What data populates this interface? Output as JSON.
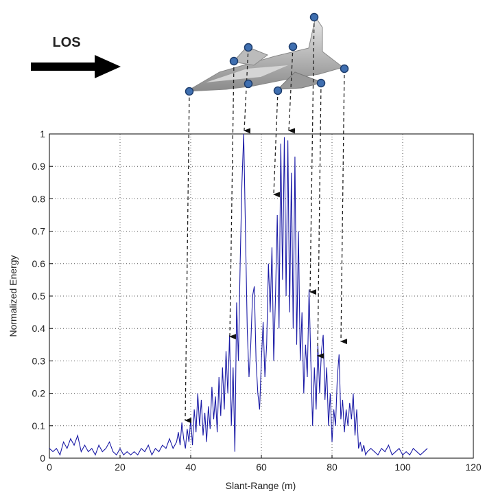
{
  "chart_data": {
    "type": "line",
    "annotation": "LOS",
    "xlabel": "Slant-Range (m)",
    "ylabel": "Normalized Energy",
    "x": [
      0,
      1,
      2,
      3,
      4,
      5,
      6,
      7,
      8,
      9,
      10,
      11,
      12,
      13,
      14,
      15,
      16,
      17,
      18,
      19,
      20,
      21,
      22,
      23,
      24,
      25,
      26,
      27,
      28,
      29,
      30,
      31,
      32,
      33,
      34,
      35,
      36,
      36.5,
      37,
      37.5,
      38,
      38.5,
      39,
      39.5,
      40,
      40.5,
      41,
      41.5,
      42,
      42.5,
      43,
      43.5,
      44,
      44.5,
      45,
      45.5,
      46,
      46.5,
      47,
      47.5,
      48,
      48.5,
      49,
      49.5,
      50,
      50.5,
      51,
      51.5,
      52,
      52.5,
      53,
      53.5,
      54,
      54.5,
      55,
      55.5,
      56,
      56.5,
      57,
      57.5,
      58,
      58.5,
      59,
      59.5,
      60,
      60.5,
      61,
      61.5,
      62,
      62.5,
      63,
      63.5,
      64,
      64.5,
      65,
      65.5,
      66,
      66.5,
      67,
      67.5,
      68,
      68.5,
      69,
      69.5,
      70,
      70.5,
      71,
      71.5,
      72,
      72.5,
      73,
      73.5,
      74,
      74.5,
      75,
      75.5,
      76,
      76.5,
      77,
      77.5,
      78,
      78.5,
      79,
      79.5,
      80,
      80.5,
      81,
      81.5,
      82,
      82.5,
      83,
      83.5,
      84,
      84.5,
      85,
      85.5,
      86,
      86.5,
      87,
      87.5,
      88,
      88.5,
      89,
      89.5,
      90,
      91,
      92,
      93,
      94,
      95,
      96,
      97,
      98,
      99,
      100,
      101,
      102,
      103,
      104,
      105,
      106,
      107
    ],
    "series": [
      {
        "name": "Normalized Energy",
        "color": "#1a1aa6",
        "values": [
          0.03,
          0.02,
          0.03,
          0.01,
          0.05,
          0.03,
          0.06,
          0.04,
          0.07,
          0.02,
          0.04,
          0.02,
          0.03,
          0.01,
          0.04,
          0.02,
          0.03,
          0.05,
          0.02,
          0.01,
          0.03,
          0.01,
          0.02,
          0.01,
          0.02,
          0.01,
          0.03,
          0.02,
          0.04,
          0.01,
          0.03,
          0.02,
          0.04,
          0.03,
          0.06,
          0.03,
          0.05,
          0.08,
          0.04,
          0.11,
          0.06,
          0.03,
          0.09,
          0.05,
          0.12,
          0.04,
          0.15,
          0.08,
          0.2,
          0.1,
          0.18,
          0.07,
          0.14,
          0.05,
          0.16,
          0.09,
          0.22,
          0.12,
          0.19,
          0.08,
          0.25,
          0.13,
          0.28,
          0.15,
          0.33,
          0.2,
          0.38,
          0.1,
          0.28,
          0.02,
          0.48,
          0.3,
          0.6,
          0.85,
          1.0,
          0.7,
          0.4,
          0.25,
          0.35,
          0.5,
          0.53,
          0.3,
          0.2,
          0.15,
          0.3,
          0.42,
          0.25,
          0.35,
          0.6,
          0.45,
          0.65,
          0.3,
          0.5,
          0.75,
          0.4,
          0.97,
          0.55,
          0.99,
          0.5,
          0.98,
          0.45,
          0.88,
          0.4,
          0.93,
          0.35,
          0.7,
          0.3,
          0.45,
          0.2,
          0.35,
          0.25,
          0.52,
          0.3,
          0.1,
          0.28,
          0.15,
          0.35,
          0.2,
          0.33,
          0.38,
          0.18,
          0.28,
          0.1,
          0.2,
          0.05,
          0.15,
          0.1,
          0.25,
          0.32,
          0.12,
          0.18,
          0.08,
          0.15,
          0.1,
          0.17,
          0.12,
          0.2,
          0.07,
          0.15,
          0.03,
          0.05,
          0.02,
          0.04,
          0.01,
          0.02,
          0.03,
          0.02,
          0.01,
          0.03,
          0.02,
          0.04,
          0.01,
          0.02,
          0.03,
          0.01,
          0.02,
          0.01,
          0.03,
          0.02,
          0.01,
          0.02,
          0.03
        ]
      }
    ],
    "xlim": [
      0,
      120
    ],
    "ylim": [
      0,
      1
    ],
    "xticks": [
      0,
      20,
      40,
      60,
      80,
      100,
      120
    ],
    "yticks": [
      0,
      0.1,
      0.2,
      0.3,
      0.4,
      0.5,
      0.6,
      0.7,
      0.8,
      0.9,
      1
    ],
    "grid": true
  }
}
